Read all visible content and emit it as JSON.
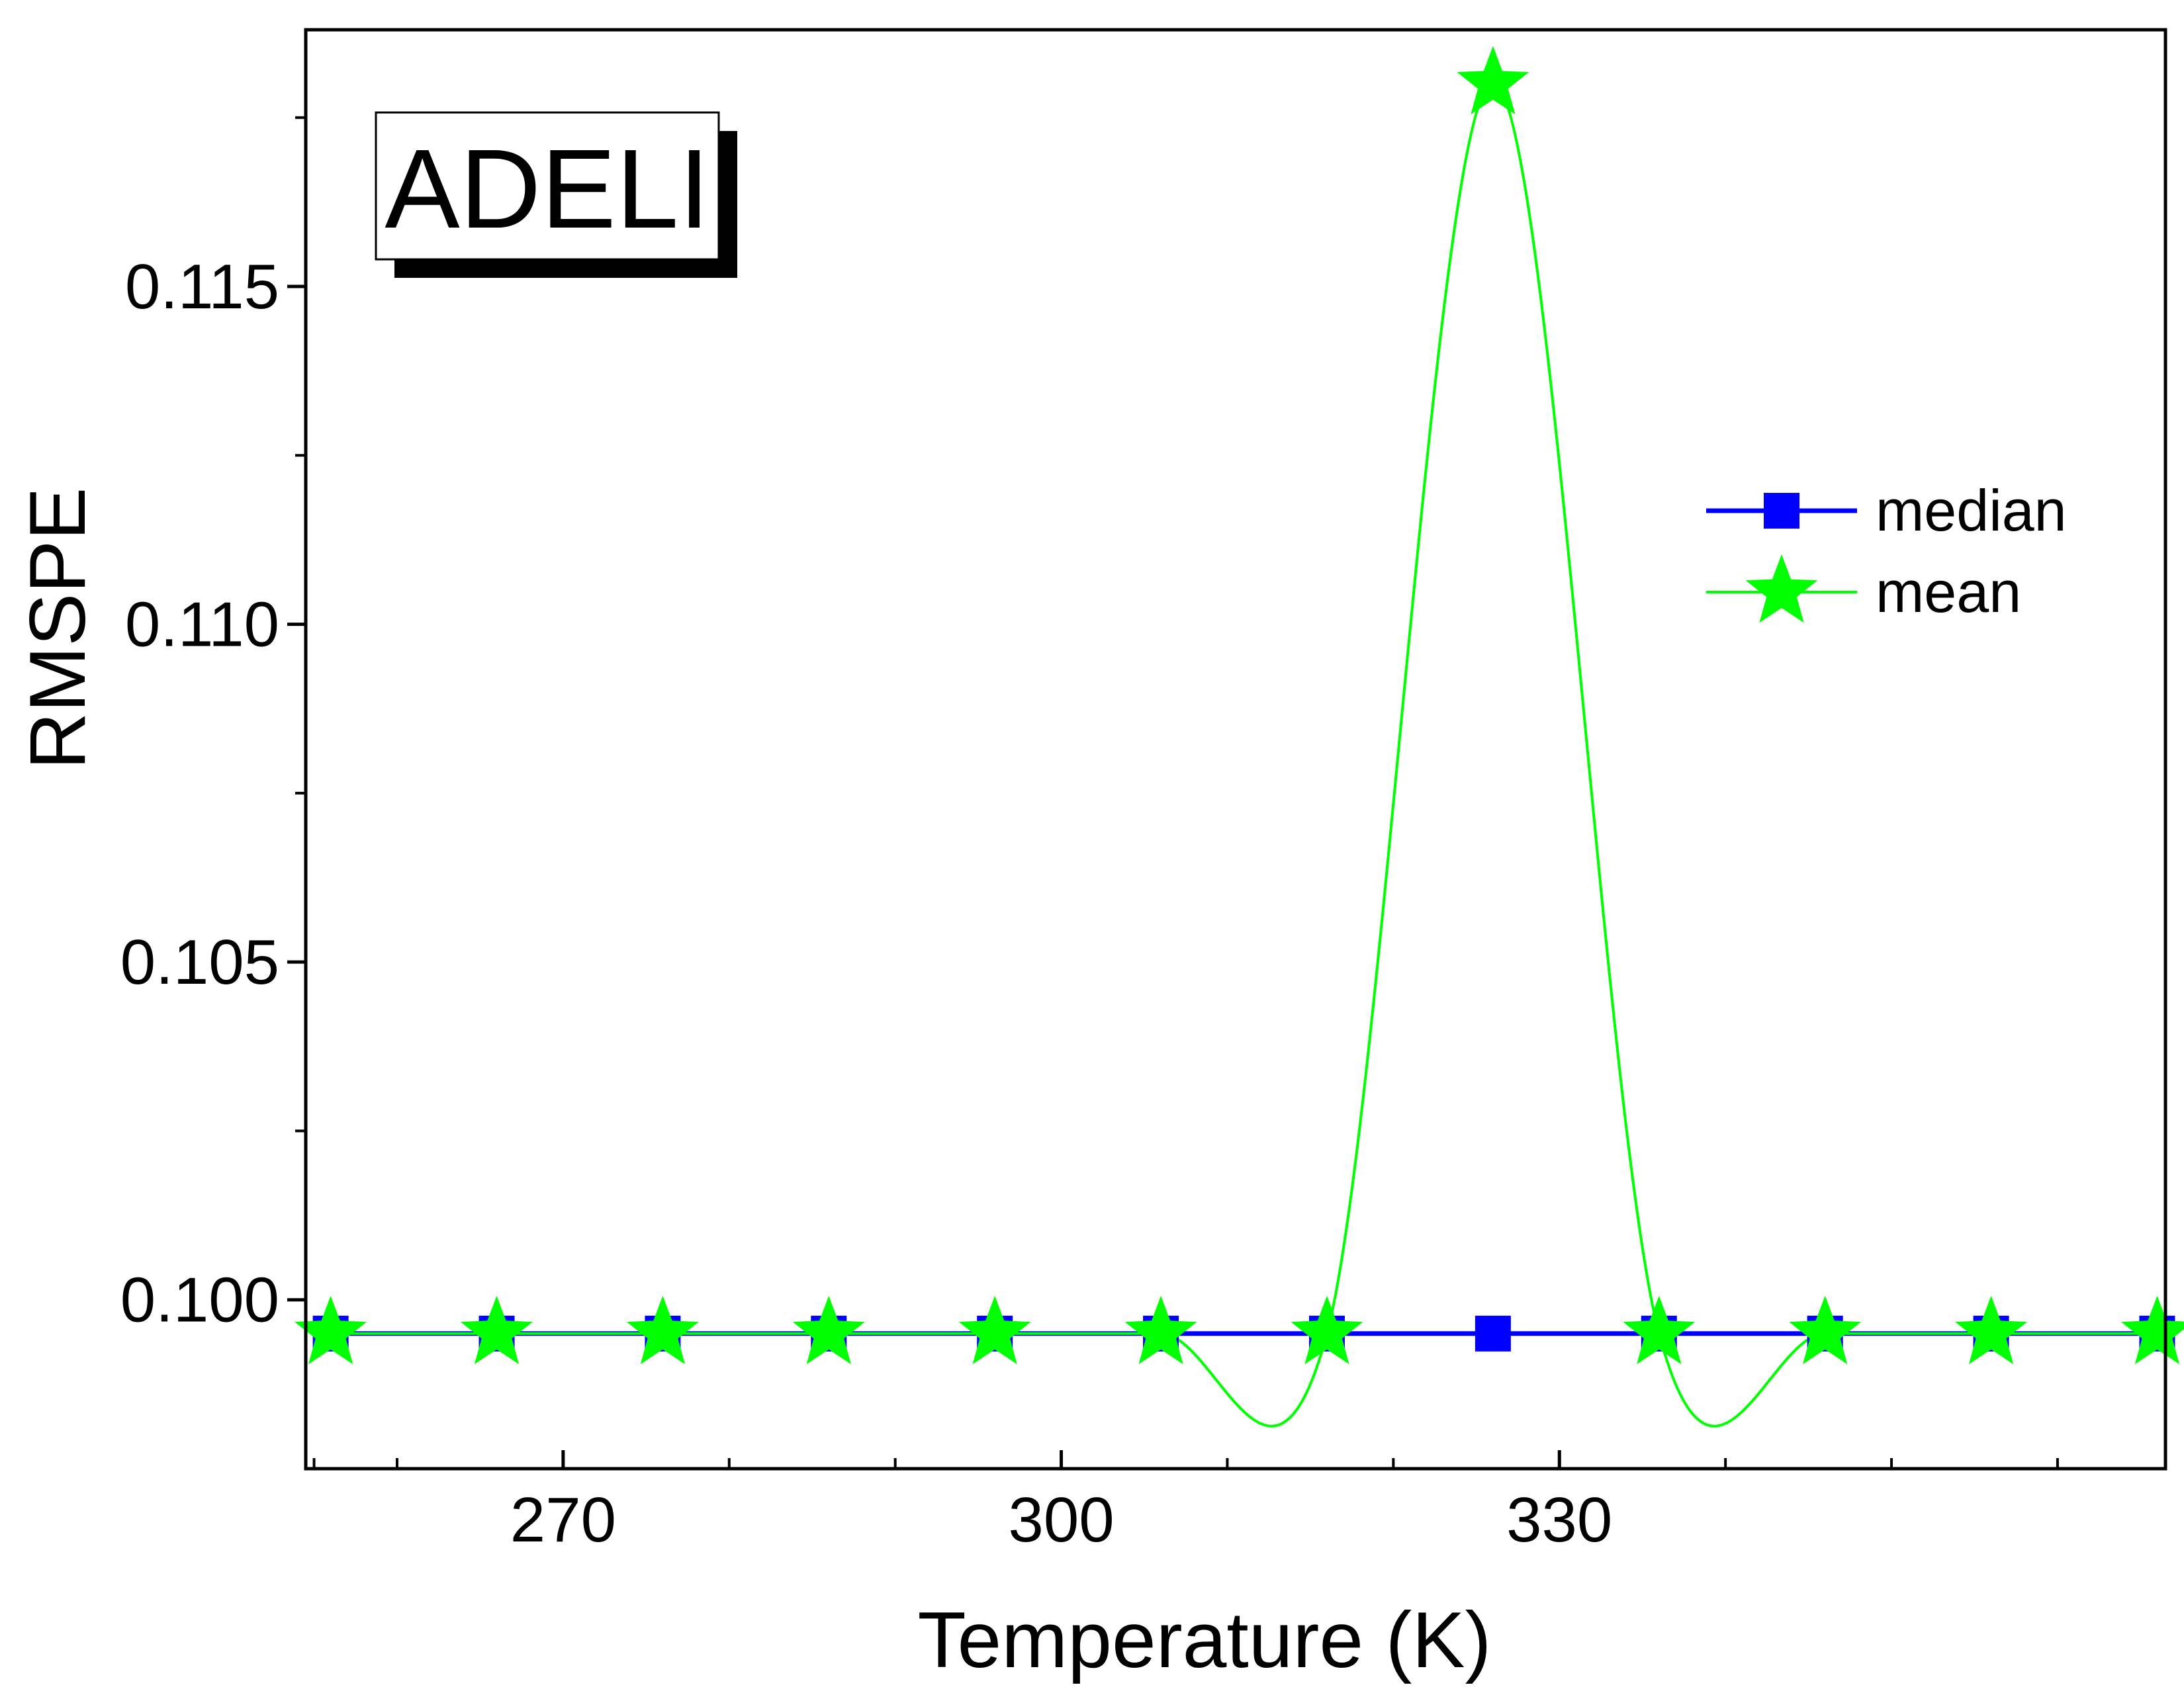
{
  "chart_data": {
    "type": "line",
    "inset_label": "ADELI",
    "xlabel": "Temperature (K)",
    "ylabel": "RMSPE",
    "xlim": [
      254.5,
      366.5
    ],
    "ylim": [
      0.0975,
      0.1188
    ],
    "x_ticks": [
      270,
      300,
      330
    ],
    "x_tick_labels": [
      "270",
      "300",
      "330"
    ],
    "x_minor_ticks": [
      255,
      260,
      280,
      290,
      310,
      320,
      340,
      350,
      360
    ],
    "y_ticks": [
      0.1,
      0.105,
      0.11,
      0.115
    ],
    "y_tick_labels": [
      "0.100",
      "0.105",
      "0.110",
      "0.115"
    ],
    "y_minor_ticks": [
      0.1025,
      0.1075,
      0.1125,
      0.1175
    ],
    "x": [
      256,
      266,
      276,
      286,
      296,
      306,
      316,
      326,
      336,
      346,
      356,
      366
    ],
    "series": [
      {
        "name": "median",
        "color": "#0000ff",
        "marker": "square",
        "values": [
          0.0995,
          0.0995,
          0.0995,
          0.0995,
          0.0995,
          0.0995,
          0.0995,
          0.0995,
          0.0995,
          0.0995,
          0.0995,
          0.0995
        ]
      },
      {
        "name": "mean",
        "color": "#00ff00",
        "marker": "star",
        "values": [
          0.0995,
          0.0995,
          0.0995,
          0.0995,
          0.0995,
          0.0995,
          0.0995,
          0.118,
          0.0995,
          0.0995,
          0.0995,
          0.0995
        ]
      }
    ],
    "legend": {
      "position": "right"
    },
    "grid": false
  }
}
